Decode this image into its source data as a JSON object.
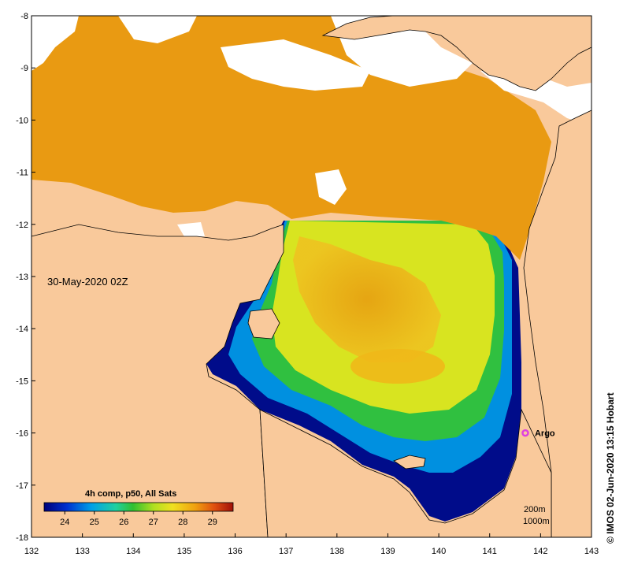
{
  "map": {
    "x_ticks": [
      "132",
      "133",
      "134",
      "135",
      "136",
      "137",
      "138",
      "139",
      "140",
      "141",
      "142",
      "143"
    ],
    "y_ticks": [
      "-8",
      "-9",
      "-10",
      "-11",
      "-12",
      "-13",
      "-14",
      "-15",
      "-16",
      "-17",
      "-18"
    ],
    "date_label": "30-May-2020 02Z",
    "marker_label": "Argo",
    "marker_color": "#e040e0",
    "marker_lon": 141.7,
    "marker_lat": -16.0,
    "legend": {
      "title": "4h comp, p50, All Sats",
      "ticks": [
        "24",
        "25",
        "26",
        "27",
        "28",
        "29"
      ]
    },
    "contour_labels": [
      "200m",
      "1000m"
    ],
    "credit": "© IMOS 02-Jun-2020 13:15 Hobart",
    "colors": {
      "land": "#f9c99b",
      "no_data": "#ffffff",
      "sst_warm": "#f0a010",
      "sst_mid": "#f0e020",
      "sst_green": "#40c040",
      "sst_cool": "#00a0e0",
      "sst_cold": "#001090"
    }
  }
}
